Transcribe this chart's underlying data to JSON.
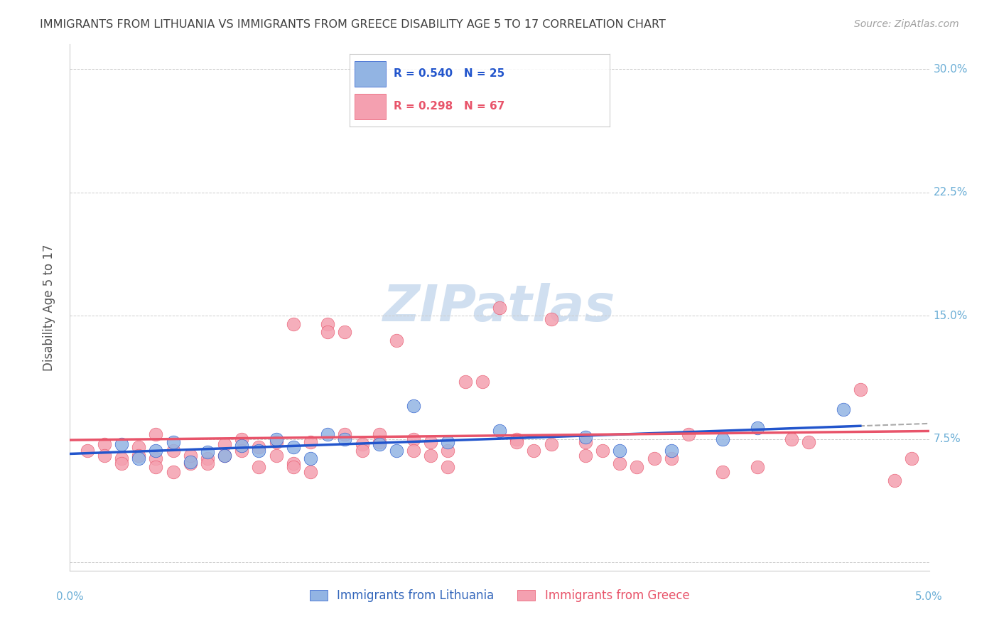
{
  "title": "IMMIGRANTS FROM LITHUANIA VS IMMIGRANTS FROM GREECE DISABILITY AGE 5 TO 17 CORRELATION CHART",
  "source": "Source: ZipAtlas.com",
  "ylabel": "Disability Age 5 to 17",
  "xlim": [
    0.0,
    0.05
  ],
  "ylim": [
    -0.005,
    0.315
  ],
  "legend_blue_r": "R = 0.540",
  "legend_blue_n": "N = 25",
  "legend_pink_r": "R = 0.298",
  "legend_pink_n": "N = 67",
  "legend_label_blue": "Immigrants from Lithuania",
  "legend_label_pink": "Immigrants from Greece",
  "blue_color": "#92b4e3",
  "pink_color": "#f4a0b0",
  "blue_line_color": "#2255cc",
  "pink_line_color": "#e8546a",
  "title_color": "#404040",
  "source_color": "#a0a0a0",
  "axis_label_color": "#6baed6",
  "grid_color": "#cccccc",
  "watermark_color": "#d0dff0",
  "blue_scatter": [
    [
      0.003,
      0.072
    ],
    [
      0.004,
      0.063
    ],
    [
      0.005,
      0.068
    ],
    [
      0.006,
      0.073
    ],
    [
      0.007,
      0.061
    ],
    [
      0.008,
      0.067
    ],
    [
      0.009,
      0.065
    ],
    [
      0.01,
      0.071
    ],
    [
      0.011,
      0.068
    ],
    [
      0.012,
      0.075
    ],
    [
      0.013,
      0.07
    ],
    [
      0.014,
      0.063
    ],
    [
      0.015,
      0.078
    ],
    [
      0.016,
      0.075
    ],
    [
      0.018,
      0.072
    ],
    [
      0.019,
      0.068
    ],
    [
      0.02,
      0.095
    ],
    [
      0.022,
      0.073
    ],
    [
      0.025,
      0.08
    ],
    [
      0.03,
      0.076
    ],
    [
      0.032,
      0.068
    ],
    [
      0.035,
      0.068
    ],
    [
      0.038,
      0.075
    ],
    [
      0.04,
      0.082
    ],
    [
      0.045,
      0.093
    ]
  ],
  "pink_scatter": [
    [
      0.001,
      0.068
    ],
    [
      0.002,
      0.072
    ],
    [
      0.002,
      0.065
    ],
    [
      0.003,
      0.063
    ],
    [
      0.003,
      0.06
    ],
    [
      0.004,
      0.07
    ],
    [
      0.004,
      0.065
    ],
    [
      0.005,
      0.063
    ],
    [
      0.005,
      0.058
    ],
    [
      0.005,
      0.078
    ],
    [
      0.006,
      0.055
    ],
    [
      0.006,
      0.068
    ],
    [
      0.007,
      0.06
    ],
    [
      0.007,
      0.065
    ],
    [
      0.008,
      0.063
    ],
    [
      0.008,
      0.06
    ],
    [
      0.009,
      0.072
    ],
    [
      0.009,
      0.065
    ],
    [
      0.01,
      0.075
    ],
    [
      0.01,
      0.068
    ],
    [
      0.011,
      0.07
    ],
    [
      0.011,
      0.058
    ],
    [
      0.012,
      0.065
    ],
    [
      0.012,
      0.073
    ],
    [
      0.013,
      0.06
    ],
    [
      0.013,
      0.058
    ],
    [
      0.013,
      0.145
    ],
    [
      0.014,
      0.073
    ],
    [
      0.014,
      0.055
    ],
    [
      0.015,
      0.145
    ],
    [
      0.015,
      0.14
    ],
    [
      0.016,
      0.078
    ],
    [
      0.016,
      0.14
    ],
    [
      0.017,
      0.072
    ],
    [
      0.017,
      0.068
    ],
    [
      0.018,
      0.078
    ],
    [
      0.018,
      0.073
    ],
    [
      0.019,
      0.135
    ],
    [
      0.02,
      0.075
    ],
    [
      0.02,
      0.068
    ],
    [
      0.021,
      0.073
    ],
    [
      0.021,
      0.065
    ],
    [
      0.022,
      0.068
    ],
    [
      0.022,
      0.058
    ],
    [
      0.023,
      0.11
    ],
    [
      0.024,
      0.11
    ],
    [
      0.025,
      0.155
    ],
    [
      0.026,
      0.075
    ],
    [
      0.026,
      0.073
    ],
    [
      0.027,
      0.068
    ],
    [
      0.028,
      0.148
    ],
    [
      0.028,
      0.072
    ],
    [
      0.03,
      0.073
    ],
    [
      0.03,
      0.065
    ],
    [
      0.031,
      0.068
    ],
    [
      0.032,
      0.06
    ],
    [
      0.033,
      0.058
    ],
    [
      0.034,
      0.063
    ],
    [
      0.035,
      0.063
    ],
    [
      0.036,
      0.078
    ],
    [
      0.038,
      0.055
    ],
    [
      0.04,
      0.058
    ],
    [
      0.042,
      0.075
    ],
    [
      0.043,
      0.073
    ],
    [
      0.046,
      0.105
    ],
    [
      0.048,
      0.05
    ],
    [
      0.049,
      0.063
    ]
  ]
}
